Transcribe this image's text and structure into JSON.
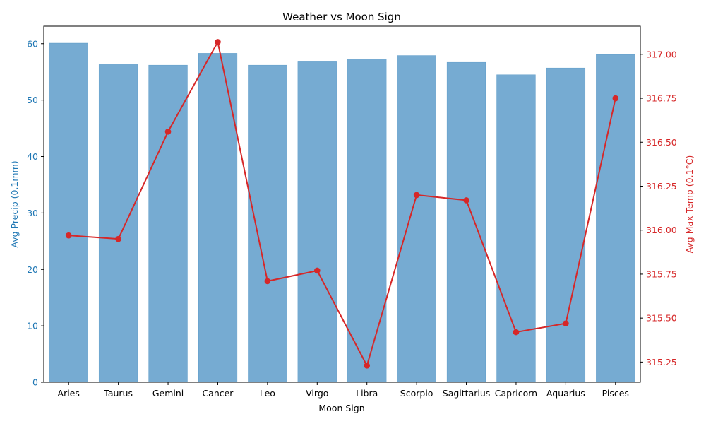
{
  "chart_data": {
    "type": "bar",
    "title": "Weather vs Moon Sign",
    "xlabel": "Moon Sign",
    "categories": [
      "Aries",
      "Taurus",
      "Gemini",
      "Cancer",
      "Leo",
      "Virgo",
      "Libra",
      "Scorpio",
      "Sagittarius",
      "Capricorn",
      "Aquarius",
      "Pisces"
    ],
    "series": [
      {
        "name": "Avg Precip (0.1mm)",
        "type": "bar",
        "axis": "left",
        "color": "#1f77b4",
        "fill": "#76abd2",
        "values": [
          60.1,
          56.3,
          56.2,
          58.3,
          56.2,
          56.8,
          57.3,
          57.9,
          56.7,
          54.5,
          55.7,
          58.1
        ]
      },
      {
        "name": "Avg Max Temp (0.1°C)",
        "type": "line",
        "axis": "right",
        "color": "#d62728",
        "values": [
          315.97,
          315.95,
          316.56,
          317.07,
          315.71,
          315.77,
          315.23,
          316.2,
          316.17,
          315.42,
          315.47,
          316.75
        ]
      }
    ],
    "y_left": {
      "label": "Avg Precip (0.1mm)",
      "range": [
        0,
        63.1
      ],
      "ticks": [
        0,
        10,
        20,
        30,
        40,
        50,
        60
      ],
      "tick_labels": [
        "0",
        "10",
        "20",
        "30",
        "40",
        "50",
        "60"
      ],
      "color": "#1f77b4"
    },
    "y_right": {
      "label": "Avg Max Temp (0.1°C)",
      "range": [
        315.135,
        317.16
      ],
      "ticks": [
        315.25,
        315.5,
        315.75,
        316.0,
        316.25,
        316.5,
        316.75,
        317.0
      ],
      "tick_labels": [
        "315.25",
        "315.50",
        "315.75",
        "316.00",
        "316.25",
        "316.50",
        "316.75",
        "317.00"
      ],
      "color": "#d62728"
    },
    "grid": false
  }
}
